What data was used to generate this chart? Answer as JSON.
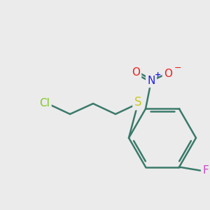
{
  "background_color": "#ebebeb",
  "bond_color": "#3a7a6a",
  "bond_width": 1.8,
  "atom_colors": {
    "Cl": "#7ec820",
    "S": "#c8c820",
    "N": "#2020ee",
    "O": "#ee2020",
    "F": "#cc44cc"
  },
  "figsize": [
    3.0,
    3.0
  ],
  "dpi": 100
}
